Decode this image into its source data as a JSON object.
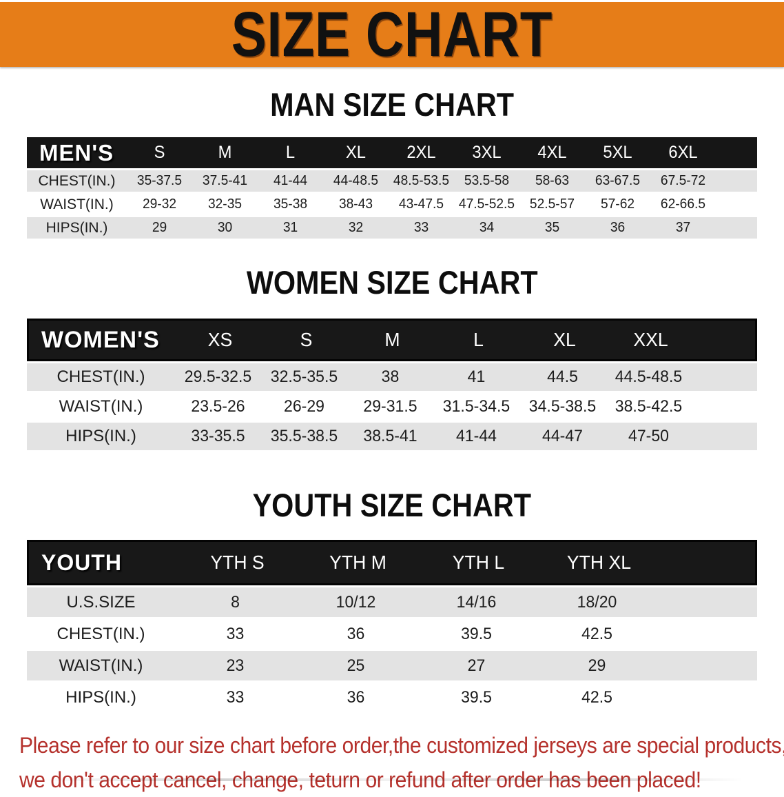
{
  "colors": {
    "accent": "#e67d18",
    "band": "#161616",
    "row_gray": "#e3e3e3",
    "note_red": "#b5312c"
  },
  "banner": {
    "title": "SIZE CHART"
  },
  "sections": [
    {
      "heading": "MAN SIZE CHART",
      "table": {
        "header_label": "MEN'S",
        "columns": [
          "S",
          "M",
          "L",
          "XL",
          "2XL",
          "3XL",
          "4XL",
          "5XL",
          "6XL"
        ],
        "rows": [
          {
            "label": "CHEST(IN.)",
            "values": [
              "35-37.5",
              "37.5-41",
              "41-44",
              "44-48.5",
              "48.5-53.5",
              "53.5-58",
              "58-63",
              "63-67.5",
              "67.5-72"
            ]
          },
          {
            "label": "WAIST(IN.)",
            "values": [
              "29-32",
              "32-35",
              "35-38",
              "38-43",
              "43-47.5",
              "47.5-52.5",
              "52.5-57",
              "57-62",
              "62-66.5"
            ]
          },
          {
            "label": "HIPS(IN.)",
            "values": [
              "29",
              "30",
              "31",
              "32",
              "33",
              "34",
              "35",
              "36",
              "37"
            ]
          }
        ]
      }
    },
    {
      "heading": "WOMEN SIZE CHART",
      "table": {
        "header_label": "WOMEN'S",
        "columns": [
          "XS",
          "S",
          "M",
          "L",
          "XL",
          "XXL"
        ],
        "rows": [
          {
            "label": "CHEST(IN.)",
            "values": [
              "29.5-32.5",
              "32.5-35.5",
              "38",
              "41",
              "44.5",
              "44.5-48.5"
            ]
          },
          {
            "label": "WAIST(IN.)",
            "values": [
              "23.5-26",
              "26-29",
              "29-31.5",
              "31.5-34.5",
              "34.5-38.5",
              "38.5-42.5"
            ]
          },
          {
            "label": "HIPS(IN.)",
            "values": [
              "33-35.5",
              "35.5-38.5",
              "38.5-41",
              "41-44",
              "44-47",
              "47-50"
            ]
          }
        ]
      }
    },
    {
      "heading": "YOUTH SIZE CHART",
      "table": {
        "header_label": "YOUTH",
        "columns": [
          "YTH S",
          "YTH M",
          "YTH L",
          "YTH XL"
        ],
        "rows": [
          {
            "label": "U.S.SIZE",
            "values": [
              "8",
              "10/12",
              "14/16",
              "18/20"
            ]
          },
          {
            "label": "CHEST(IN.)",
            "values": [
              "33",
              "36",
              "39.5",
              "42.5"
            ]
          },
          {
            "label": "WAIST(IN.)",
            "values": [
              "23",
              "25",
              "27",
              "29"
            ]
          },
          {
            "label": "HIPS(IN.)",
            "values": [
              "33",
              "36",
              "39.5",
              "42.5"
            ]
          }
        ]
      }
    }
  ],
  "footer": {
    "line1": "Please refer to our size chart before order,the customized jerseys are special products,",
    "line2": "we don't accept cancel, change, teturn or refund after order has been placed!"
  }
}
